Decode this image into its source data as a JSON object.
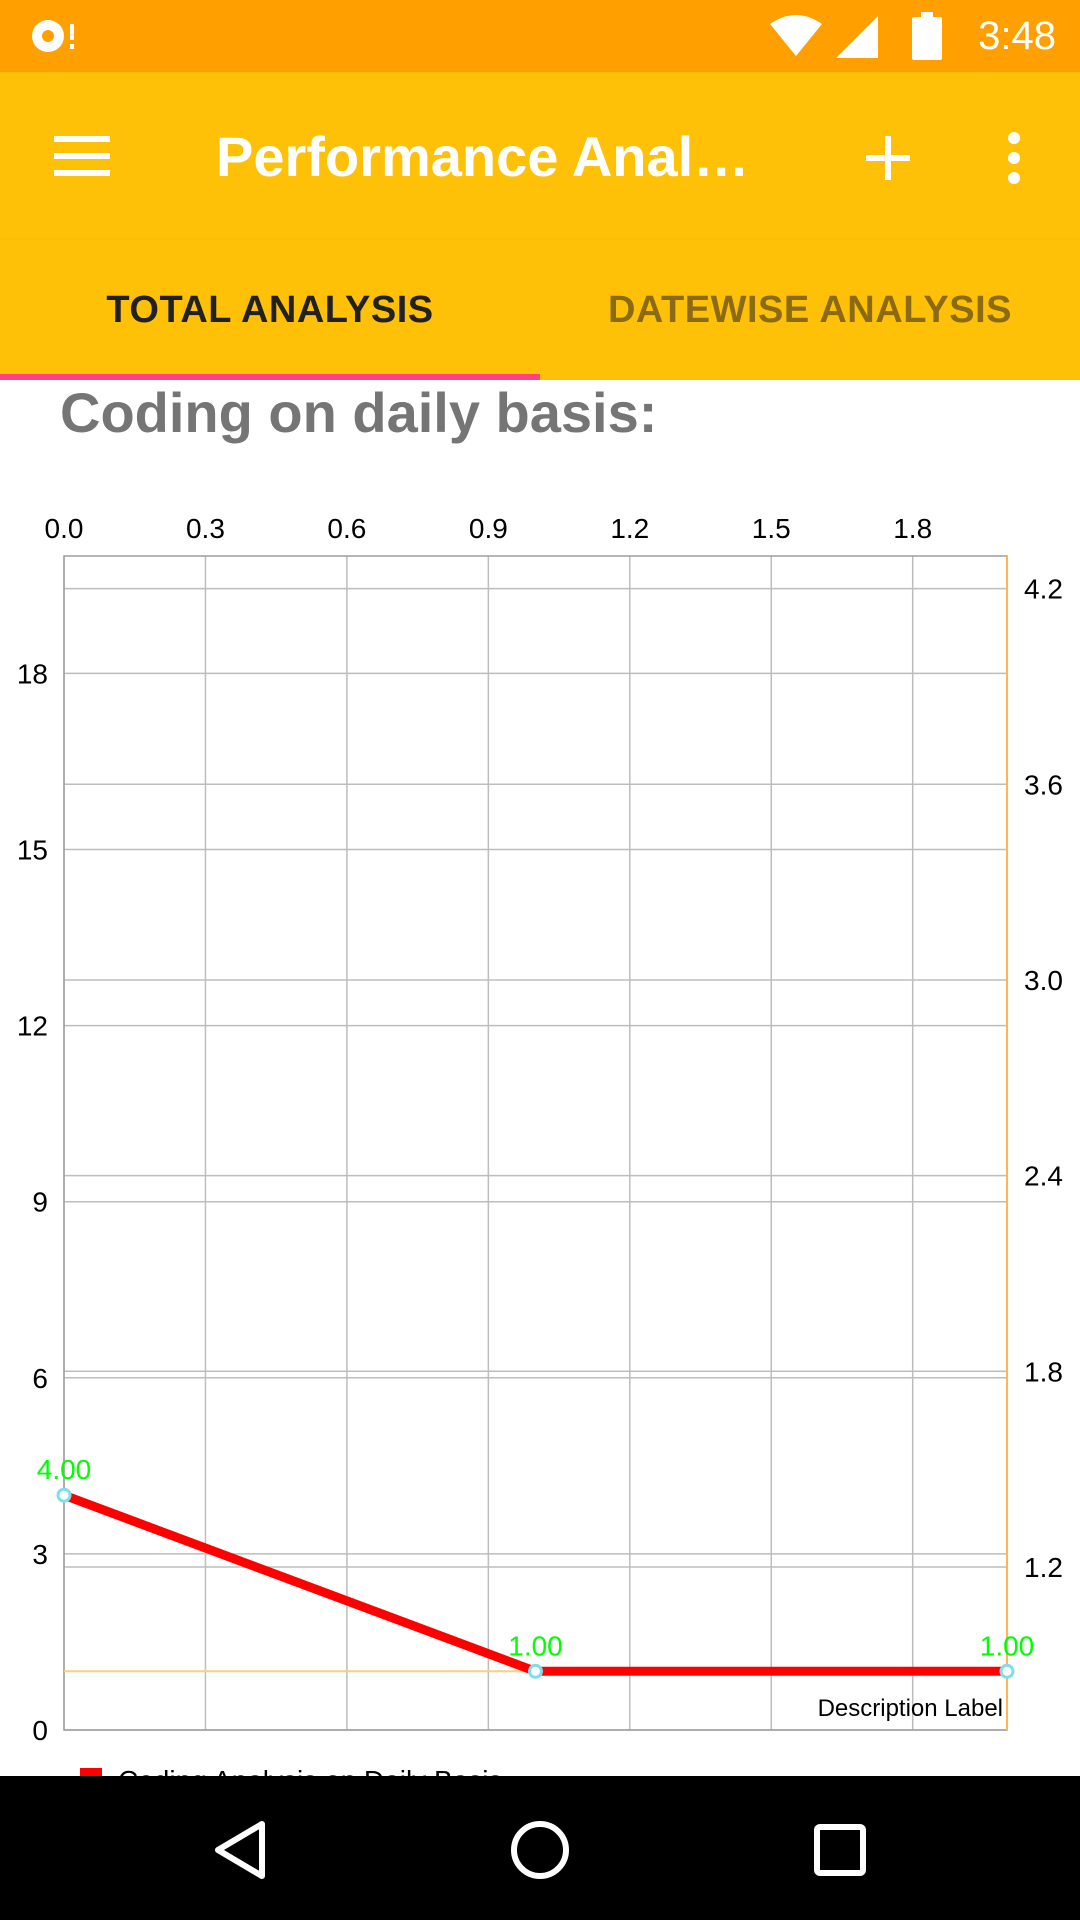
{
  "status_bar": {
    "time": "3:48",
    "icons": [
      "notification-icon",
      "wifi-icon",
      "signal-icon",
      "battery-icon"
    ]
  },
  "app_bar": {
    "title": "Performance Analy…",
    "menu_icon": "menu-icon",
    "add_icon": "add-icon",
    "overflow_icon": "more-vert-icon",
    "color": "#FFC107"
  },
  "tabs": [
    {
      "label": "TOTAL ANALYSIS",
      "active": true
    },
    {
      "label": "DATEWISE ANALYSIS",
      "active": false
    }
  ],
  "accent_color": "#FF4081",
  "section_title": "Coding on daily basis:",
  "chart_data": {
    "type": "line",
    "x_ticks": [
      "0.0",
      "0.3",
      "0.6",
      "0.9",
      "1.2",
      "1.5",
      "1.8"
    ],
    "x_tick_values": [
      0,
      0.3,
      0.6,
      0.9,
      1.2,
      1.5,
      1.8
    ],
    "xlim": [
      0,
      2
    ],
    "y_left_ticks": [
      "0",
      "3",
      "6",
      "9",
      "12",
      "15",
      "18"
    ],
    "y_left_tick_values": [
      0,
      3,
      6,
      9,
      12,
      15,
      18
    ],
    "y_left_lim": [
      0,
      20
    ],
    "y_right_ticks": [
      "1.2",
      "1.8",
      "2.4",
      "3.0",
      "3.6",
      "4.2"
    ],
    "y_right_tick_values": [
      1.2,
      1.8,
      2.4,
      3.0,
      3.6,
      4.2
    ],
    "y_right_lim": [
      0.7,
      4.3
    ],
    "series": [
      {
        "name": "Coding Analysis on Daily Basis",
        "x": [
          0,
          1,
          2
        ],
        "y": [
          4,
          1,
          1
        ],
        "labels": [
          "4.00",
          "1.00",
          "1.00"
        ],
        "color": "#FF0000"
      }
    ],
    "value_label_color": "#00FF00",
    "limit_line_value": 1,
    "limit_line_color": "#FFCC80",
    "description": "Description Label",
    "grid": true,
    "legend": "bottom-left"
  },
  "nav_bar": {
    "icons": [
      "back-icon",
      "home-icon",
      "recents-icon"
    ]
  }
}
